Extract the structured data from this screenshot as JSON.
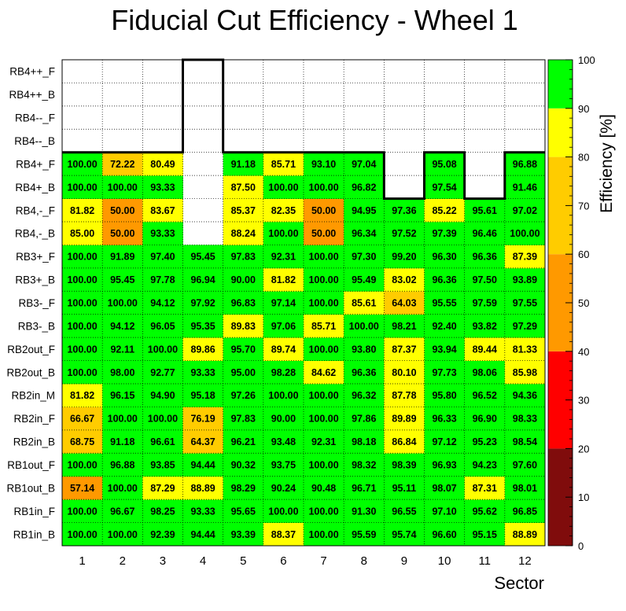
{
  "chart_data": {
    "type": "heatmap",
    "title": "Fiducial Cut Efficiency - Wheel 1",
    "xlabel": "Sector",
    "zlabel": "Efficiency [%]",
    "x_categories": [
      "1",
      "2",
      "3",
      "4",
      "5",
      "6",
      "7",
      "8",
      "9",
      "10",
      "11",
      "12"
    ],
    "y_categories": [
      "RB1in_B",
      "RB1in_F",
      "RB1out_B",
      "RB1out_F",
      "RB2in_B",
      "RB2in_F",
      "RB2in_M",
      "RB2out_B",
      "RB2out_F",
      "RB3-_B",
      "RB3-_F",
      "RB3+_B",
      "RB3+_F",
      "RB4,-_B",
      "RB4,-_F",
      "RB4+_B",
      "RB4+_F",
      "RB4--_B",
      "RB4--_F",
      "RB4++_B",
      "RB4++_F"
    ],
    "values": [
      [
        100.0,
        100.0,
        92.39,
        94.44,
        93.39,
        88.37,
        100.0,
        95.59,
        95.74,
        96.6,
        95.15,
        88.89
      ],
      [
        100.0,
        96.67,
        98.25,
        93.33,
        95.65,
        100.0,
        100.0,
        91.3,
        96.55,
        97.1,
        95.62,
        96.85
      ],
      [
        57.14,
        100.0,
        87.29,
        88.89,
        98.29,
        90.24,
        90.48,
        96.71,
        95.11,
        98.07,
        87.31,
        98.01
      ],
      [
        100.0,
        96.88,
        93.85,
        94.44,
        90.32,
        93.75,
        100.0,
        98.32,
        98.39,
        96.93,
        94.23,
        97.6
      ],
      [
        68.75,
        91.18,
        96.61,
        64.37,
        96.21,
        93.48,
        92.31,
        98.18,
        86.84,
        97.12,
        95.23,
        98.54
      ],
      [
        66.67,
        100.0,
        100.0,
        76.19,
        97.83,
        90.0,
        100.0,
        97.86,
        89.89,
        96.33,
        96.9,
        98.33
      ],
      [
        81.82,
        96.15,
        94.9,
        95.18,
        97.26,
        100.0,
        100.0,
        96.32,
        87.78,
        95.8,
        96.52,
        94.36
      ],
      [
        100.0,
        98.0,
        92.77,
        93.33,
        95.0,
        98.28,
        84.62,
        96.36,
        80.1,
        97.73,
        98.06,
        85.98
      ],
      [
        100.0,
        92.11,
        100.0,
        89.86,
        95.7,
        89.74,
        100.0,
        93.8,
        87.37,
        93.94,
        89.44,
        81.33
      ],
      [
        100.0,
        94.12,
        96.05,
        95.35,
        89.83,
        97.06,
        85.71,
        100.0,
        98.21,
        92.4,
        93.82,
        97.29
      ],
      [
        100.0,
        100.0,
        94.12,
        97.92,
        96.83,
        97.14,
        100.0,
        85.61,
        64.03,
        95.55,
        97.59,
        97.55
      ],
      [
        100.0,
        95.45,
        97.78,
        96.94,
        90.0,
        81.82,
        100.0,
        95.49,
        83.02,
        96.36,
        97.5,
        93.89
      ],
      [
        100.0,
        91.89,
        97.4,
        95.45,
        97.83,
        92.31,
        100.0,
        97.3,
        99.2,
        96.3,
        96.36,
        87.39
      ],
      [
        85.0,
        50.0,
        93.33,
        null,
        88.24,
        100.0,
        50.0,
        96.34,
        97.52,
        97.39,
        96.46,
        100.0
      ],
      [
        81.82,
        50.0,
        83.67,
        null,
        85.37,
        82.35,
        50.0,
        94.95,
        97.36,
        85.22,
        95.61,
        97.02
      ],
      [
        100.0,
        100.0,
        93.33,
        null,
        87.5,
        100.0,
        100.0,
        96.82,
        null,
        97.54,
        null,
        91.46
      ],
      [
        100.0,
        72.22,
        80.49,
        null,
        91.18,
        85.71,
        93.1,
        97.04,
        null,
        95.08,
        null,
        96.88
      ],
      [
        null,
        null,
        null,
        null,
        null,
        null,
        null,
        null,
        null,
        null,
        null,
        null
      ],
      [
        null,
        null,
        null,
        null,
        null,
        null,
        null,
        null,
        null,
        null,
        null,
        null
      ],
      [
        null,
        null,
        null,
        null,
        null,
        null,
        null,
        null,
        null,
        null,
        null,
        null
      ],
      [
        null,
        null,
        null,
        null,
        null,
        null,
        null,
        null,
        null,
        null,
        null,
        null
      ]
    ],
    "value_format": "2 decimals",
    "zlim": [
      0,
      100
    ],
    "colorbar": {
      "ticks": [
        "0",
        "10",
        "20",
        "30",
        "40",
        "50",
        "60",
        "70",
        "80",
        "90",
        "100"
      ],
      "bands": [
        {
          "from": 0,
          "to": 20,
          "color": "#800c0c"
        },
        {
          "from": 20,
          "to": 40,
          "color": "#ff0000"
        },
        {
          "from": 40,
          "to": 60,
          "color": "#ff9900"
        },
        {
          "from": 60,
          "to": 80,
          "color": "#ffcc00"
        },
        {
          "from": 80,
          "to": 90,
          "color": "#ffff00"
        },
        {
          "from": 90,
          "to": 100,
          "color": "#00ff00"
        }
      ]
    },
    "grid": true,
    "legend": "right"
  }
}
